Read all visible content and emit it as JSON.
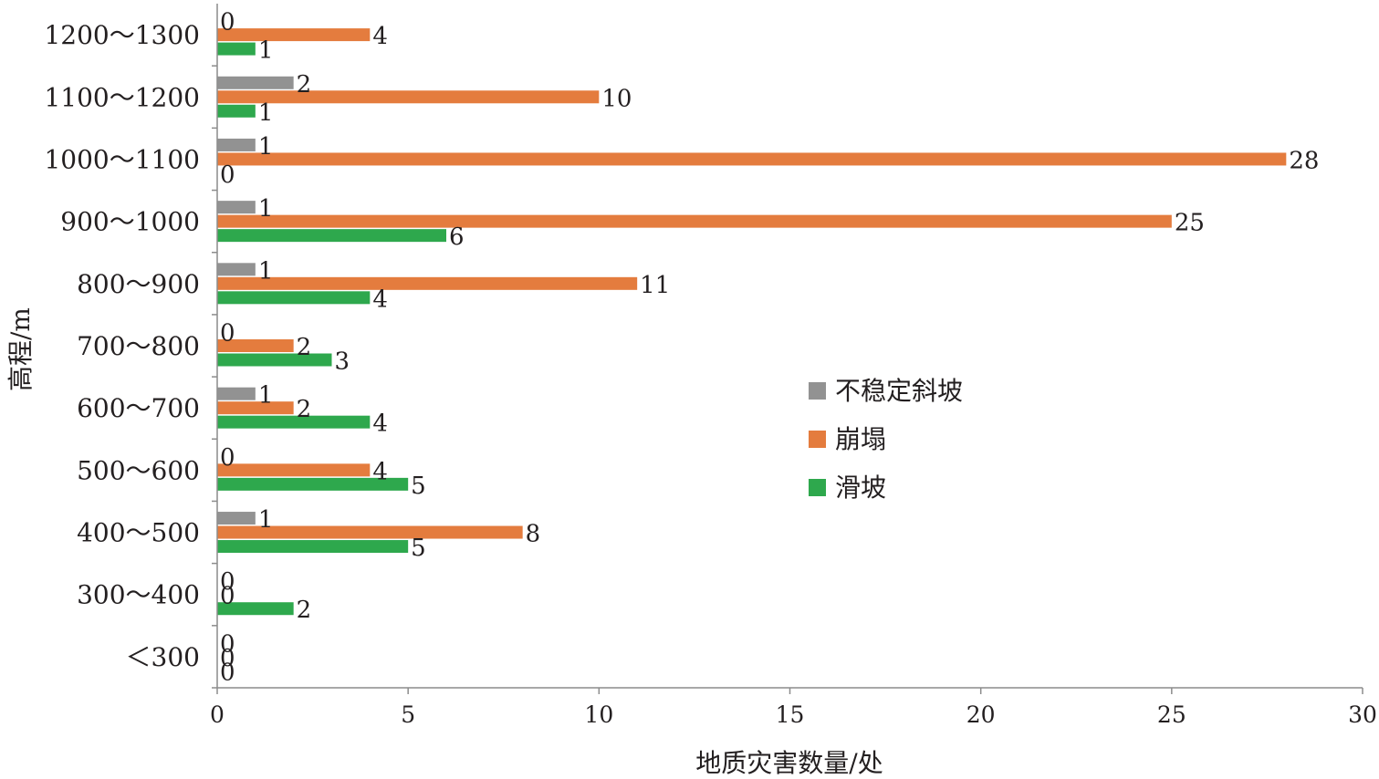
{
  "chart_data": {
    "type": "bar",
    "orientation": "horizontal",
    "categories": [
      "<300",
      "300～400",
      "400～500",
      "500～600",
      "600～700",
      "700～800",
      "800～900",
      "900～1000",
      "1000～1100",
      "1100～1200",
      "1200～1300"
    ],
    "category_labels": [
      "＜300",
      "300～400",
      "400～500",
      "500～600",
      "600～700",
      "700～800",
      "800～900",
      "900～1000",
      "1000～1100",
      "1100～1200",
      "1200～1300"
    ],
    "series": [
      {
        "name": "不稳定斜坡",
        "color": "#929292",
        "values": [
          0,
          0,
          1,
          0,
          1,
          0,
          1,
          1,
          1,
          2,
          0
        ]
      },
      {
        "name": "崩塌",
        "color": "#e47c3e",
        "values": [
          0,
          0,
          8,
          4,
          2,
          2,
          11,
          25,
          28,
          10,
          4
        ]
      },
      {
        "name": "滑坡",
        "color": "#2ea84d",
        "values": [
          0,
          2,
          5,
          5,
          4,
          3,
          4,
          6,
          0,
          1,
          1
        ]
      }
    ],
    "xlabel": "地质灾害数量/处",
    "ylabel": "高程/m",
    "xlim": [
      0,
      30
    ],
    "xticks": [
      0,
      5,
      10,
      15,
      20,
      25,
      30
    ],
    "grid": false,
    "data_labels": true,
    "legend_position": "right-middle"
  }
}
